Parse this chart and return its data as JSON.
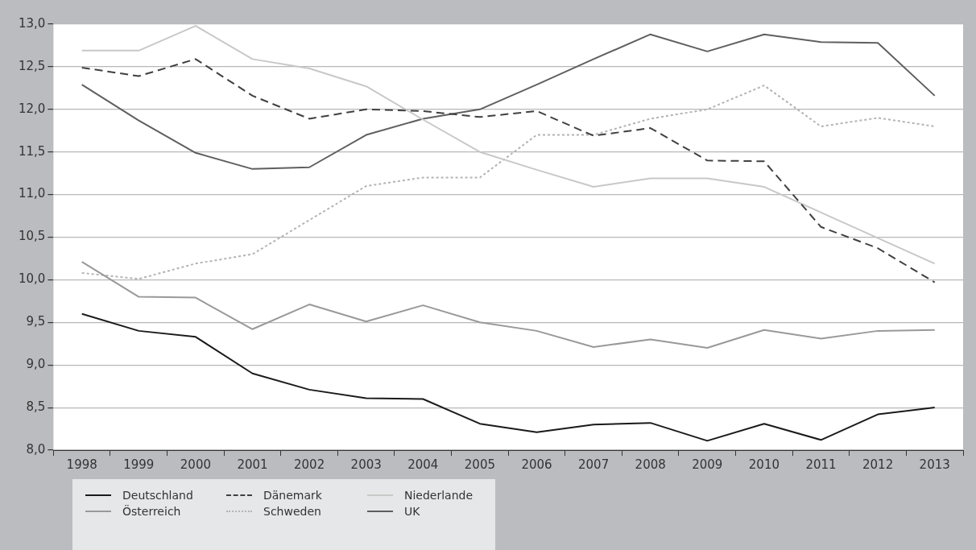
{
  "chart_data": {
    "type": "line",
    "categories": [
      "1998",
      "1999",
      "2000",
      "2001",
      "2002",
      "2003",
      "2004",
      "2005",
      "2006",
      "2007",
      "2008",
      "2009",
      "2010",
      "2011",
      "2012",
      "2013"
    ],
    "series": [
      {
        "name": "Deutschland",
        "color": "#1a1a1a",
        "line_style": "solid",
        "values": [
          9.6,
          9.4,
          9.33,
          8.9,
          8.71,
          8.61,
          8.6,
          8.31,
          8.21,
          8.3,
          8.32,
          8.11,
          8.31,
          8.12,
          8.42,
          8.5
        ]
      },
      {
        "name": "Dänemark",
        "color": "#404040",
        "line_style": "dashed",
        "values": [
          12.49,
          12.39,
          12.59,
          12.16,
          11.89,
          12.0,
          11.98,
          11.91,
          11.98,
          11.69,
          11.78,
          11.4,
          11.39,
          10.62,
          10.37,
          9.97
        ]
      },
      {
        "name": "Niederlande",
        "color": "#c8c8c8",
        "line_style": "solid",
        "values": [
          12.69,
          12.69,
          12.98,
          12.59,
          12.48,
          12.27,
          11.88,
          11.5,
          11.29,
          11.09,
          11.19,
          11.19,
          11.09,
          10.79,
          10.49,
          10.19
        ]
      },
      {
        "name": "Österreich",
        "color": "#999999",
        "line_style": "solid",
        "values": [
          10.21,
          9.8,
          9.79,
          9.42,
          9.71,
          9.51,
          9.7,
          9.5,
          9.4,
          9.21,
          9.3,
          9.2,
          9.41,
          9.31,
          9.4,
          9.41
        ]
      },
      {
        "name": "Schweden",
        "color": "#b3b3b3",
        "line_style": "dotted",
        "values": [
          10.08,
          10.01,
          10.19,
          10.3,
          10.7,
          11.1,
          11.2,
          11.2,
          11.7,
          11.7,
          11.89,
          12.0,
          12.28,
          11.8,
          11.9,
          11.8
        ]
      },
      {
        "name": "UK",
        "color": "#5f5f5f",
        "line_style": "solid",
        "values": [
          12.29,
          11.87,
          11.49,
          11.3,
          11.32,
          11.7,
          11.89,
          12.0,
          12.29,
          12.59,
          12.88,
          12.68,
          12.88,
          12.79,
          12.78,
          12.16
        ]
      }
    ],
    "ylim": [
      8.0,
      13.0
    ],
    "yticks": [
      {
        "value": 8.0,
        "label": "8,0"
      },
      {
        "value": 8.5,
        "label": "8,5"
      },
      {
        "value": 9.0,
        "label": "9,0"
      },
      {
        "value": 9.5,
        "label": "9,5"
      },
      {
        "value": 10.0,
        "label": "10,0"
      },
      {
        "value": 10.5,
        "label": "10,5"
      },
      {
        "value": 11.0,
        "label": "11,0"
      },
      {
        "value": 11.5,
        "label": "11,5"
      },
      {
        "value": 12.0,
        "label": "12,0"
      },
      {
        "value": 12.5,
        "label": "12,5"
      },
      {
        "value": 13.0,
        "label": "13,0"
      }
    ],
    "grid": "y",
    "legend": "bottom left",
    "marker": "none"
  }
}
